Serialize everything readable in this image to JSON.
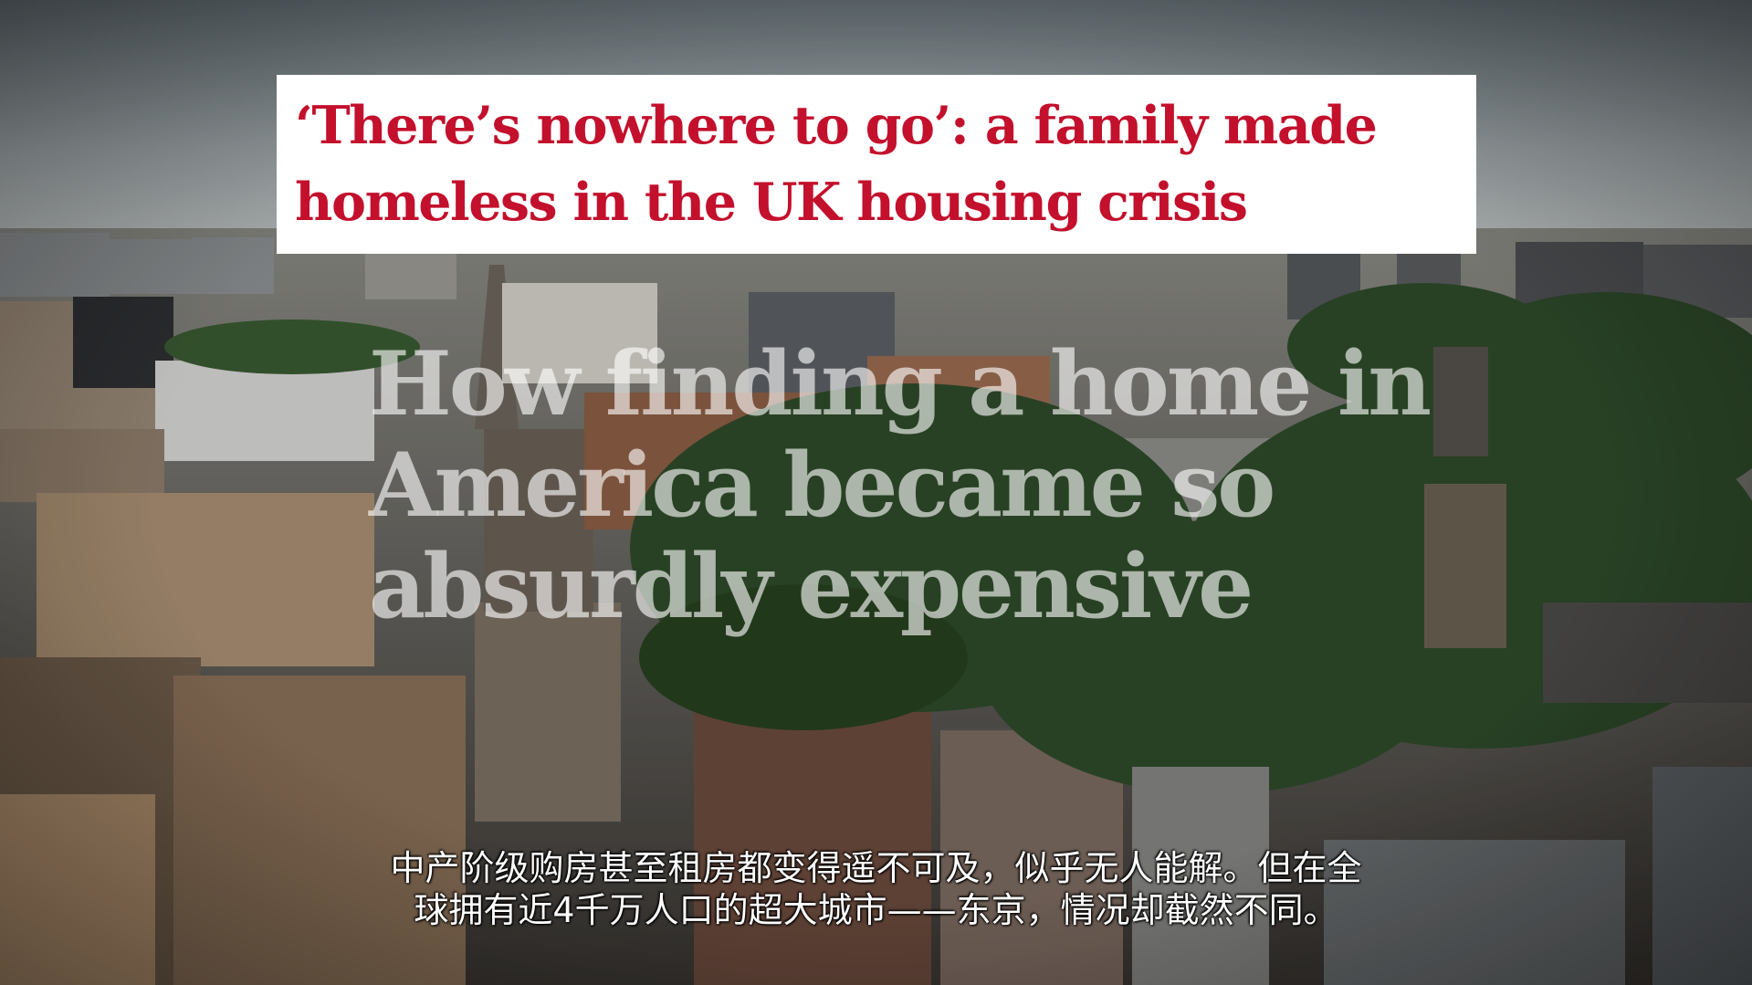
{
  "headline_card": {
    "text": "‘There’s nowhere to go’: a family made\nhomeless in the UK housing crisis",
    "color": "#c3102c"
  },
  "overlay_title": {
    "text": "How finding a home in\nAmerica became so\nabsurdly expensive"
  },
  "subtitle": {
    "text": "中产阶级购房甚至租房都变得遥不可及，似乎无人能解。但在全\n球拥有近4千万人口的超大城市——东京，情况却截然不同。"
  },
  "scene": {
    "sky_color": "#9aa3a8",
    "tree_color": "#2f4a2a",
    "building_color": "#7a6a5a"
  }
}
